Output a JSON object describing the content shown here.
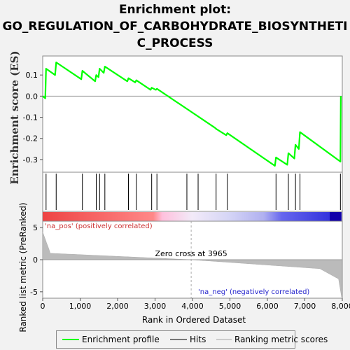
{
  "title_lines": [
    "Enrichment plot:",
    "GO_REGULATION_OF_CARBOHYDRATE_BIOSYNTHETI",
    "C_PROCESS"
  ],
  "chart_data": {
    "type": "line",
    "title": "Enrichment plot: GO_REGULATION_OF_CARBOHYDRATE_BIOSYNTHETIC_PROCESS",
    "ylabel_es": "Enrichment score (ES)",
    "ylabel_metric": "Ranked list metric (PreRanked)",
    "xlabel": "Rank in Ordered Dataset",
    "xlim": [
      0,
      8000
    ],
    "es_ylim": [
      -0.36,
      0.19
    ],
    "es_yticks": [
      "0.1",
      "0.0",
      "-0.1",
      "-0.2",
      "-0.3"
    ],
    "es_ytick_values": [
      0.1,
      0.0,
      -0.1,
      -0.2,
      -0.3
    ],
    "metric_ylim": [
      -6,
      6
    ],
    "metric_yticks": [
      "5",
      "0",
      "-5"
    ],
    "metric_ytick_values": [
      5,
      0,
      -5
    ],
    "xticks": [
      "0",
      "1,000",
      "2,000",
      "3,000",
      "4,000",
      "5,000",
      "6,000",
      "7,000",
      "8,000"
    ],
    "xtick_values": [
      0,
      1000,
      2000,
      3000,
      4000,
      5000,
      6000,
      7000,
      8000
    ],
    "es_curve": [
      [
        0,
        0.0
      ],
      [
        70,
        -0.01
      ],
      [
        90,
        0.13
      ],
      [
        330,
        0.1
      ],
      [
        360,
        0.16
      ],
      [
        1030,
        0.08
      ],
      [
        1060,
        0.12
      ],
      [
        1400,
        0.07
      ],
      [
        1430,
        0.1
      ],
      [
        1490,
        0.09
      ],
      [
        1520,
        0.13
      ],
      [
        1630,
        0.11
      ],
      [
        1660,
        0.14
      ],
      [
        2260,
        0.07
      ],
      [
        2290,
        0.085
      ],
      [
        2470,
        0.065
      ],
      [
        2500,
        0.075
      ],
      [
        2880,
        0.03
      ],
      [
        2910,
        0.04
      ],
      [
        3020,
        0.03
      ],
      [
        3050,
        0.035
      ],
      [
        4600,
        -0.15
      ],
      [
        4630,
        -0.155
      ],
      [
        4900,
        -0.185
      ],
      [
        4930,
        -0.175
      ],
      [
        6200,
        -0.33
      ],
      [
        6230,
        -0.29
      ],
      [
        6530,
        -0.325
      ],
      [
        6560,
        -0.27
      ],
      [
        6720,
        -0.295
      ],
      [
        6750,
        -0.23
      ],
      [
        6840,
        -0.25
      ],
      [
        6870,
        -0.17
      ],
      [
        7950,
        -0.31
      ],
      [
        7960,
        0.0
      ]
    ],
    "hits": [
      90,
      360,
      1060,
      1430,
      1520,
      1660,
      2290,
      2500,
      2910,
      3050,
      3850,
      4150,
      4630,
      4930,
      6230,
      6560,
      6750,
      6870,
      7950
    ],
    "zero_cross": 3965,
    "zero_cross_label": "Zero cross at 3965",
    "pos_label": "'na_pos' (positively correlated)",
    "neg_label": "'na_neg' (negatively correlated)",
    "legend": [
      "Enrichment profile",
      "Hits",
      "Ranking metric scores"
    ],
    "colors": {
      "profile": "#00ff00",
      "hits": "#000000",
      "metric": "#bbbbbb",
      "pos": "#cc3333",
      "neg": "#2222cc"
    }
  }
}
